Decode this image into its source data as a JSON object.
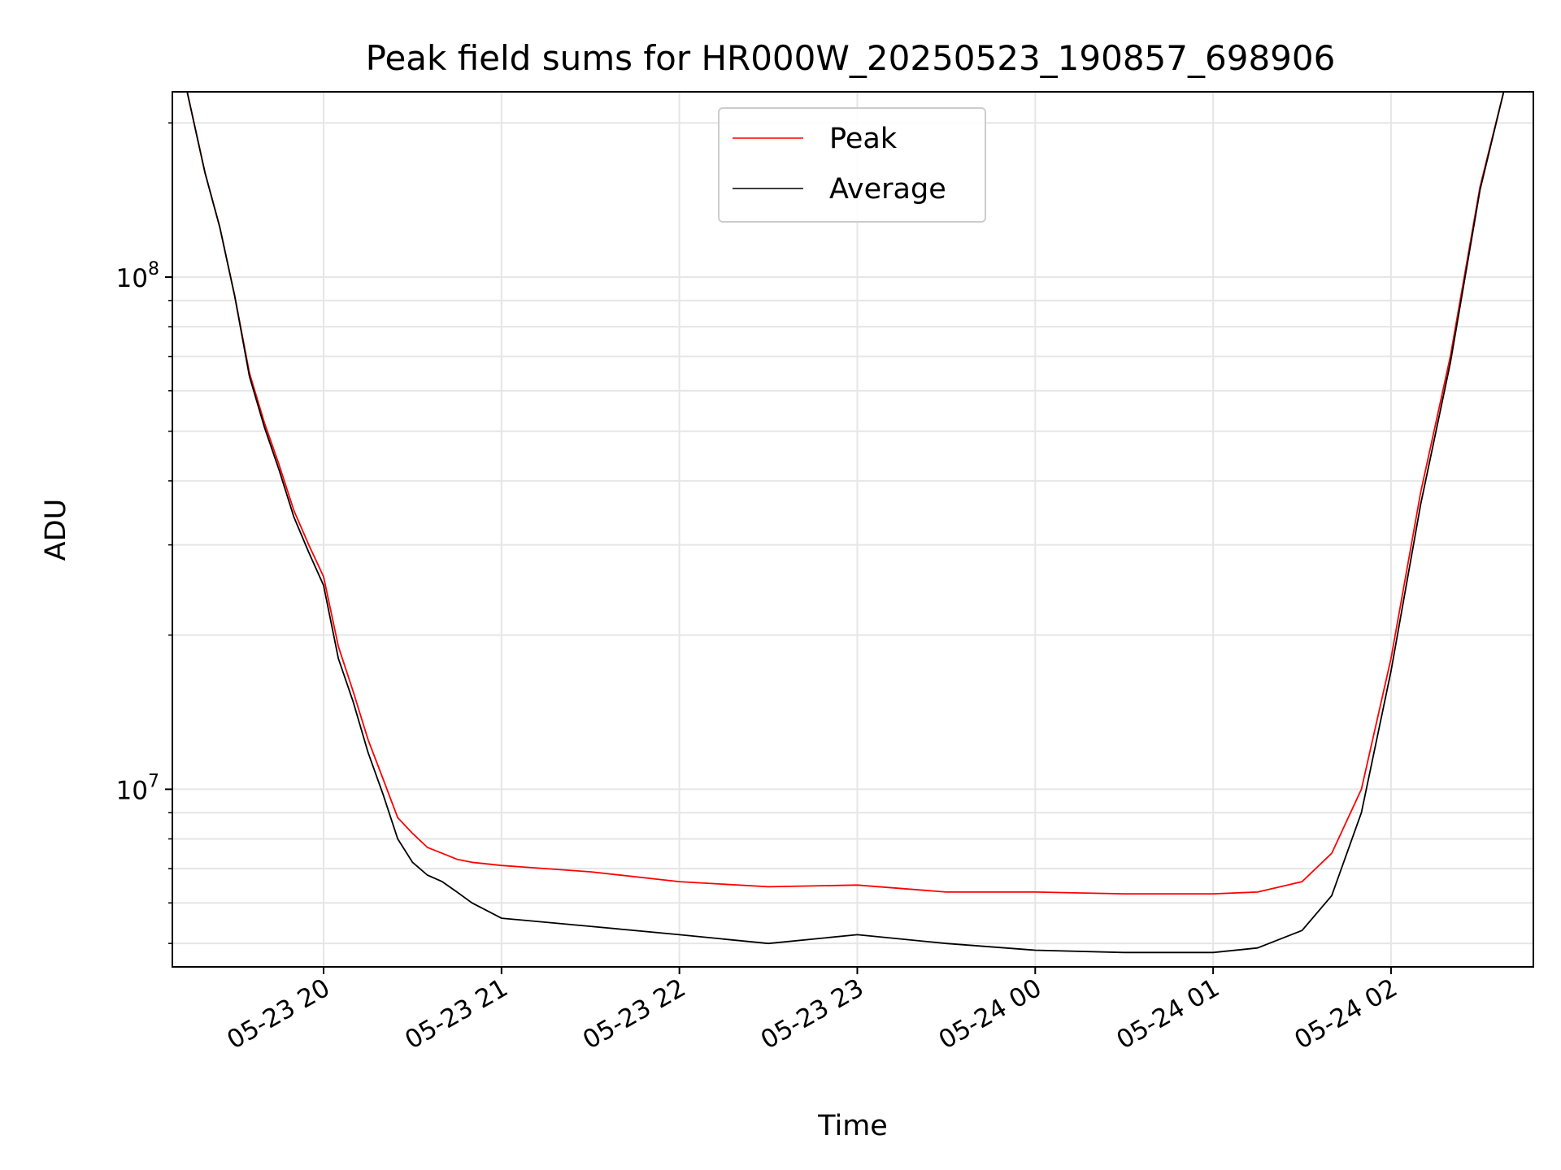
{
  "chart_data": {
    "type": "line",
    "title": "Peak field sums for HR000W_20250523_190857_698906",
    "xlabel": "Time",
    "ylabel": "ADU",
    "yscale": "log",
    "xlim": [
      "2025-05-23 19:09",
      "2025-05-24 02:48"
    ],
    "ylim": [
      4500000,
      230000000
    ],
    "grid": true,
    "legend_position": "upper-center",
    "x_ticks": [
      "2025-05-23 20:00",
      "2025-05-23 21:00",
      "2025-05-23 22:00",
      "2025-05-23 23:00",
      "2025-05-24 00:00",
      "2025-05-24 01:00",
      "2025-05-24 02:00"
    ],
    "x_tick_labels": [
      "05-23 20",
      "05-23 21",
      "05-23 22",
      "05-23 23",
      "05-24 00",
      "05-24 01",
      "05-24 02"
    ],
    "y_ticks": [
      10000000,
      100000000
    ],
    "y_tick_labels": [
      {
        "base": "10",
        "exp": "7"
      },
      {
        "base": "10",
        "exp": "8"
      }
    ],
    "y_minor_ticks": [
      5000000,
      6000000,
      7000000,
      8000000,
      9000000,
      20000000,
      30000000,
      40000000,
      50000000,
      60000000,
      70000000,
      80000000,
      90000000,
      200000000
    ],
    "series": [
      {
        "name": "Peak",
        "color": "#ff0000",
        "x": [
          "2025-05-23 19:14",
          "2025-05-23 19:20",
          "2025-05-23 19:25",
          "2025-05-23 19:30",
          "2025-05-23 19:35",
          "2025-05-23 19:40",
          "2025-05-23 19:45",
          "2025-05-23 19:50",
          "2025-05-23 19:55",
          "2025-05-23 20:00",
          "2025-05-23 20:05",
          "2025-05-23 20:10",
          "2025-05-23 20:15",
          "2025-05-23 20:20",
          "2025-05-23 20:25",
          "2025-05-23 20:30",
          "2025-05-23 20:35",
          "2025-05-23 20:40",
          "2025-05-23 20:45",
          "2025-05-23 20:50",
          "2025-05-23 21:00",
          "2025-05-23 21:30",
          "2025-05-23 22:00",
          "2025-05-23 22:30",
          "2025-05-23 23:00",
          "2025-05-23 23:30",
          "2025-05-24 00:00",
          "2025-05-24 00:30",
          "2025-05-24 01:00",
          "2025-05-24 01:15",
          "2025-05-24 01:30",
          "2025-05-24 01:40",
          "2025-05-24 01:50",
          "2025-05-24 02:00",
          "2025-05-24 02:10",
          "2025-05-24 02:20",
          "2025-05-24 02:30",
          "2025-05-24 02:38"
        ],
        "y": [
          230000000,
          160000000,
          125000000,
          92000000,
          65000000,
          52000000,
          43000000,
          35000000,
          30000000,
          26000000,
          19000000,
          15500000,
          12500000,
          10500000,
          8800000,
          8200000,
          7700000,
          7500000,
          7300000,
          7200000,
          7100000,
          6900000,
          6600000,
          6450000,
          6500000,
          6300000,
          6300000,
          6250000,
          6250000,
          6300000,
          6600000,
          7500000,
          10000000,
          18000000,
          38000000,
          70000000,
          150000000,
          230000000
        ]
      },
      {
        "name": "Average",
        "color": "#000000",
        "x": [
          "2025-05-23 19:14",
          "2025-05-23 19:20",
          "2025-05-23 19:25",
          "2025-05-23 19:30",
          "2025-05-23 19:35",
          "2025-05-23 19:40",
          "2025-05-23 19:45",
          "2025-05-23 19:50",
          "2025-05-23 19:55",
          "2025-05-23 20:00",
          "2025-05-23 20:05",
          "2025-05-23 20:10",
          "2025-05-23 20:15",
          "2025-05-23 20:20",
          "2025-05-23 20:25",
          "2025-05-23 20:30",
          "2025-05-23 20:35",
          "2025-05-23 20:40",
          "2025-05-23 20:45",
          "2025-05-23 20:50",
          "2025-05-23 21:00",
          "2025-05-23 21:30",
          "2025-05-23 22:00",
          "2025-05-23 22:30",
          "2025-05-23 23:00",
          "2025-05-23 23:30",
          "2025-05-24 00:00",
          "2025-05-24 00:30",
          "2025-05-24 01:00",
          "2025-05-24 01:15",
          "2025-05-24 01:30",
          "2025-05-24 01:40",
          "2025-05-24 01:50",
          "2025-05-24 02:00",
          "2025-05-24 02:10",
          "2025-05-24 02:20",
          "2025-05-24 02:30",
          "2025-05-24 02:38"
        ],
        "y": [
          230000000,
          160000000,
          125000000,
          92000000,
          64000000,
          51000000,
          42000000,
          34000000,
          29000000,
          25000000,
          18000000,
          14800000,
          11800000,
          9800000,
          8000000,
          7200000,
          6800000,
          6600000,
          6300000,
          6000000,
          5600000,
          5400000,
          5200000,
          5000000,
          5200000,
          5000000,
          4850000,
          4800000,
          4800000,
          4900000,
          5300000,
          6200000,
          9000000,
          17000000,
          36000000,
          68000000,
          148000000,
          230000000
        ]
      }
    ]
  }
}
